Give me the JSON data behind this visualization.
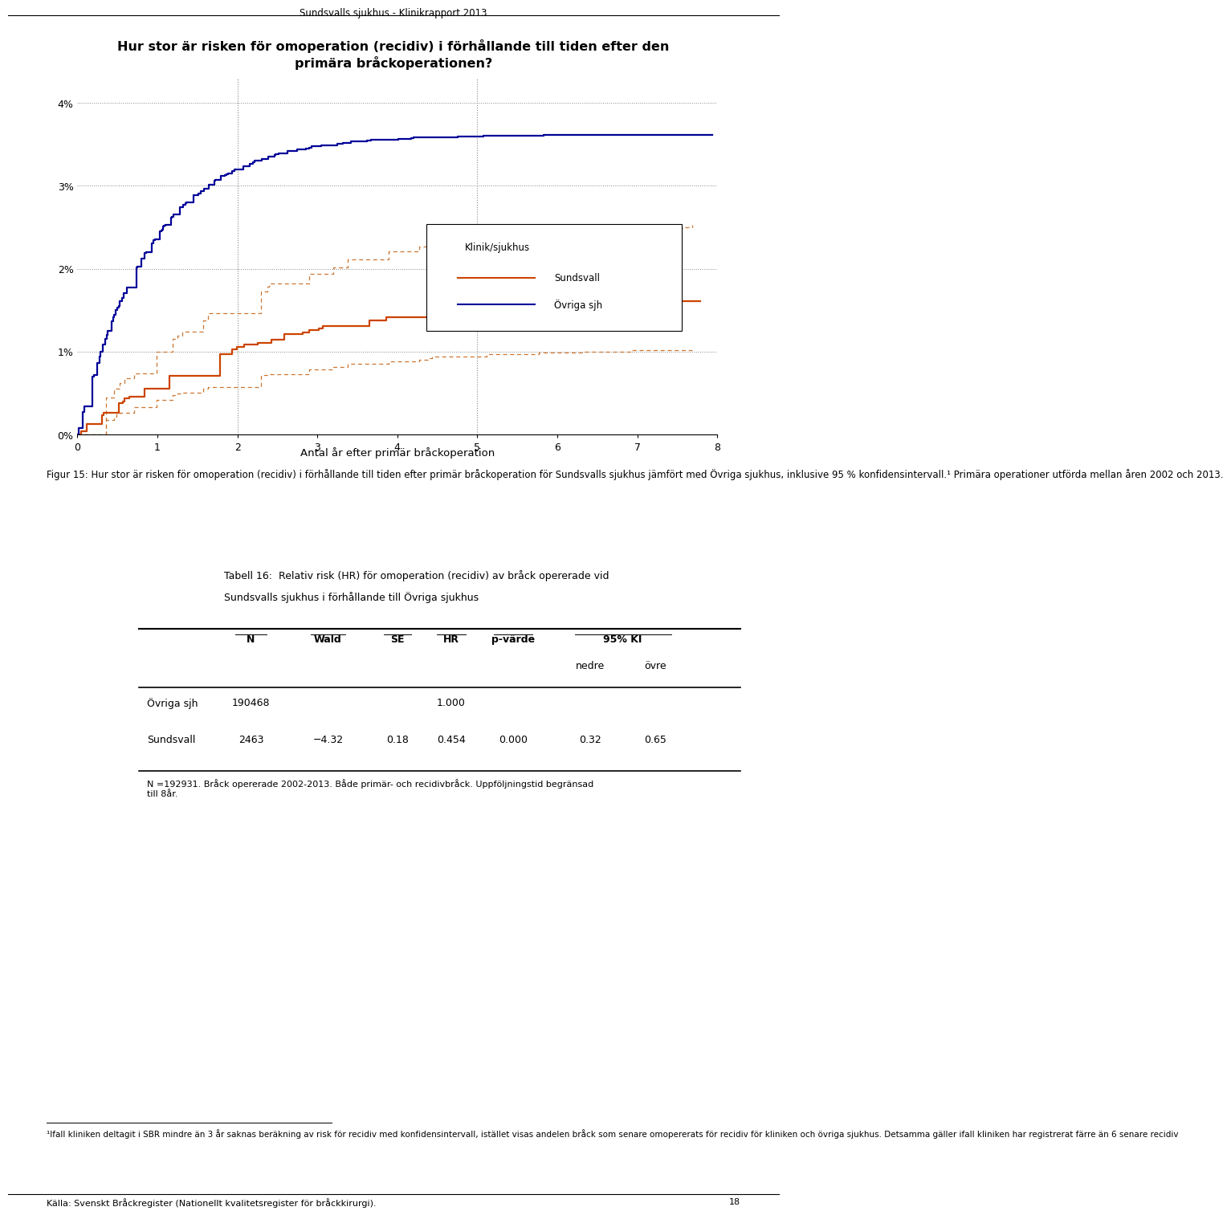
{
  "page_title": "Sundsvalls sjukhus - Klinikrapport 2013",
  "chart_title_line1": "Hur stor är risken för omoperation (recidiv) i förhållande till tiden efter den",
  "chart_title_line2": "primära bråckoperationen?",
  "xlabel": "Antal år efter primär bråckoperation",
  "yticks": [
    0.0,
    0.01,
    0.02,
    0.03,
    0.04
  ],
  "ytick_labels": [
    "0%",
    "1%",
    "2%",
    "3%",
    "4%"
  ],
  "xticks": [
    0,
    1,
    2,
    3,
    4,
    5,
    6,
    7,
    8
  ],
  "xlim": [
    0,
    8
  ],
  "ylim": [
    0,
    0.043
  ],
  "legend_title": "Klinik/sjukhus",
  "legend_sundsvall": "Sundsvall",
  "legend_ovriga": "Övriga sjh",
  "sundsvall_color": "#CC4400",
  "ovriga_color": "#000099",
  "ci_color": "#CC7733",
  "vlines": [
    2,
    5
  ],
  "caption_fig": "Figur 15: Hur stor är risken för omoperation (recidiv) i förhållande till tiden efter primär bråckoperation för Sundsvalls sjukhus jämfört med Övriga sjukhus, inklusive 95 % konfidensintervall.¹ Primära operationer utförda mellan åren 2002 och 2013.",
  "table_title_line1": "Tabell 16:  Relativ risk (HR) för omoperation (recidiv) av bråck opererade vid",
  "table_title_line2": "Sundsvalls sjukhus i förhållande till Övriga sjukhus",
  "table_note": "N =192931. Bråck opererade 2002-2013. Både primär- och recidivbråck. Uppföljningstid begränsad\ntill 8år.",
  "footnote": "¹Ifall kliniken deltagit i SBR mindre än 3 år saknas beräkning av risk för recidiv med konfidensintervall, istället visas andelen bråck som senare omopererats för recidiv för kliniken och övriga sjukhus. Detsamma gäller ifall kliniken har registrerat färre än 6 senare recidiv",
  "source": "Källa: Svenskt Bråckregister (Nationellt kvalitetsregister för bråckkirurgi).",
  "page_number": "18",
  "background_color": "#ffffff"
}
